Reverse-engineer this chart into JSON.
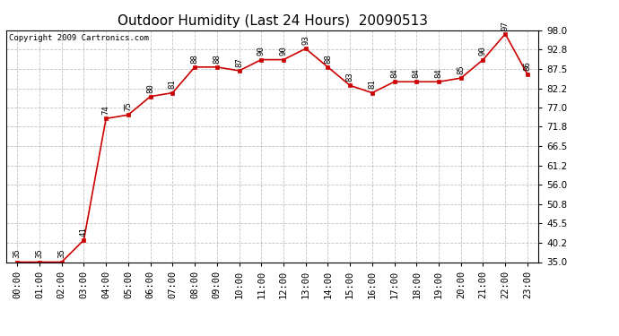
{
  "title": "Outdoor Humidity (Last 24 Hours)  20090513",
  "copyright": "Copyright 2009 Cartronics.com",
  "x_labels": [
    "00:00",
    "01:00",
    "02:00",
    "03:00",
    "04:00",
    "05:00",
    "06:00",
    "07:00",
    "08:00",
    "09:00",
    "10:00",
    "11:00",
    "12:00",
    "13:00",
    "14:00",
    "15:00",
    "16:00",
    "17:00",
    "18:00",
    "19:00",
    "20:00",
    "21:00",
    "22:00",
    "23:00"
  ],
  "x_values": [
    0,
    1,
    2,
    3,
    4,
    5,
    6,
    7,
    8,
    9,
    10,
    11,
    12,
    13,
    14,
    15,
    16,
    17,
    18,
    19,
    20,
    21,
    22,
    23
  ],
  "y_values": [
    35,
    35,
    35,
    41,
    74,
    75,
    80,
    81,
    88,
    88,
    87,
    90,
    90,
    93,
    88,
    83,
    81,
    84,
    84,
    84,
    85,
    90,
    97,
    86
  ],
  "data_labels": [
    "35",
    "35",
    "35",
    "41",
    "74",
    "75",
    "80",
    "81",
    "88",
    "88",
    "87",
    "90",
    "90",
    "93",
    "88",
    "83",
    "81",
    "84",
    "84",
    "84",
    "85",
    "90",
    "97",
    "86"
  ],
  "ylim_min": 35.0,
  "ylim_max": 98.0,
  "yticks": [
    35.0,
    40.2,
    45.5,
    50.8,
    56.0,
    61.2,
    66.5,
    71.8,
    77.0,
    82.2,
    87.5,
    92.8,
    98.0
  ],
  "line_color": "#cc0000",
  "marker_color": "#cc0000",
  "bg_color": "#ffffff",
  "grid_color": "#bbbbbb",
  "title_fontsize": 11,
  "label_fontsize": 6.5,
  "copyright_fontsize": 6.5,
  "tick_fontsize": 7.5,
  "ytick_fontsize": 7.5
}
